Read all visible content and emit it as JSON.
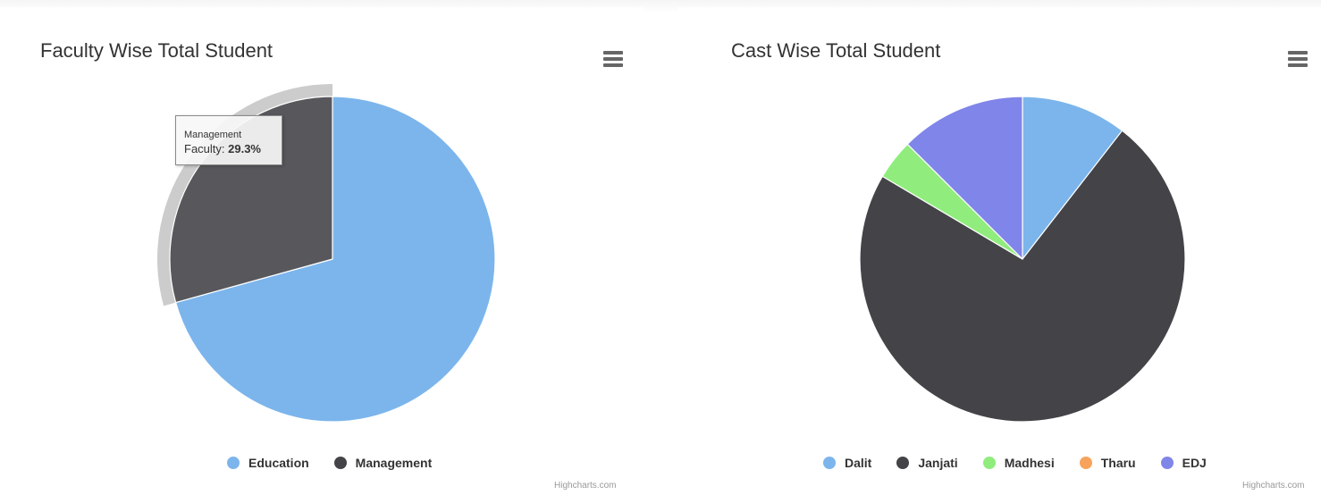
{
  "chart_data": [
    {
      "type": "pie",
      "title": "Faculty Wise Total Student",
      "categories": [
        "Education",
        "Management"
      ],
      "values": [
        70.7,
        29.3
      ],
      "colors": [
        "#7cb5ec",
        "#434348"
      ],
      "legend": "bottom-center",
      "hovered_slice": "Management",
      "tooltip": {
        "header": "Management",
        "label": "Faculty: ",
        "value": "29.3%"
      },
      "credits": "Highcharts.com"
    },
    {
      "type": "pie",
      "title": "Cast Wise Total Student",
      "categories": [
        "Dalit",
        "Janjati",
        "Madhesi",
        "Tharu",
        "EDJ"
      ],
      "values": [
        10.5,
        73.0,
        4.0,
        0.0,
        12.5
      ],
      "colors": [
        "#7cb5ec",
        "#434348",
        "#90ed7d",
        "#f7a35c",
        "#8085e9"
      ],
      "legend": "bottom-center",
      "credits": "Highcharts.com"
    }
  ],
  "icons": {
    "menu": "hamburger-menu-icon"
  }
}
